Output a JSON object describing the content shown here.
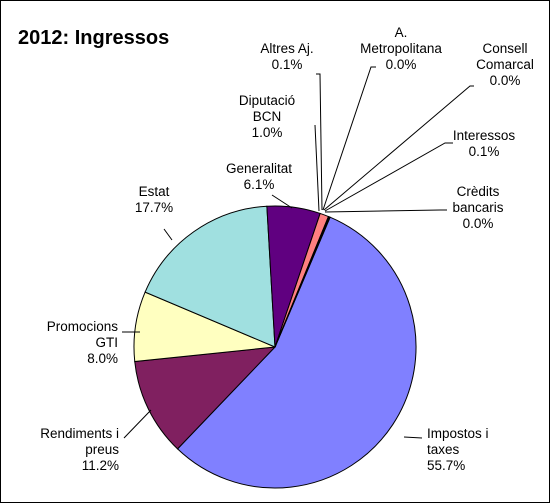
{
  "chart_data": {
    "type": "pie",
    "title": "2012: Ingressos",
    "slices": [
      {
        "name": "Impostos i taxes",
        "lines": [
          "Impostos i",
          "taxes"
        ],
        "value": 55.7,
        "label": "55.7%",
        "color": "#8080ff"
      },
      {
        "name": "Rendiments i preus",
        "lines": [
          "Rendiments i",
          "preus"
        ],
        "value": 11.2,
        "label": "11.2%",
        "color": "#802060"
      },
      {
        "name": "Promocions GTI",
        "lines": [
          "Promocions",
          "GTI"
        ],
        "value": 8.0,
        "label": "8.0%",
        "color": "#ffffc0"
      },
      {
        "name": "Estat",
        "lines": [
          "Estat"
        ],
        "value": 17.7,
        "label": "17.7%",
        "color": "#a0e0e0"
      },
      {
        "name": "Generalitat",
        "lines": [
          "Generalitat"
        ],
        "value": 6.1,
        "label": "6.1%",
        "color": "#600080"
      },
      {
        "name": "Diputació BCN",
        "lines": [
          "Diputació",
          "BCN"
        ],
        "value": 1.0,
        "label": "1.0%",
        "color": "#ff8080"
      },
      {
        "name": "Altres Aj.",
        "lines": [
          "Altres Aj."
        ],
        "value": 0.1,
        "label": "0.1%",
        "color": "#0066cc"
      },
      {
        "name": "A. Metropolitana",
        "lines": [
          "A.",
          "Metropolitana"
        ],
        "value": 0.0,
        "label": "0.0%",
        "color": "#c0c0ff"
      },
      {
        "name": "Consell Comarcal",
        "lines": [
          "Consell",
          "Comarcal"
        ],
        "value": 0.0,
        "label": "0.0%",
        "color": "#000080"
      },
      {
        "name": "Interessos",
        "lines": [
          "Interessos"
        ],
        "value": 0.1,
        "label": "0.1%",
        "color": "#ff00ff"
      },
      {
        "name": "Crèdits bancaris",
        "lines": [
          "Crèdits",
          "bancaris"
        ],
        "value": 0.0,
        "label": "0.0%",
        "color": "#ffff00"
      }
    ],
    "legend": "none"
  }
}
